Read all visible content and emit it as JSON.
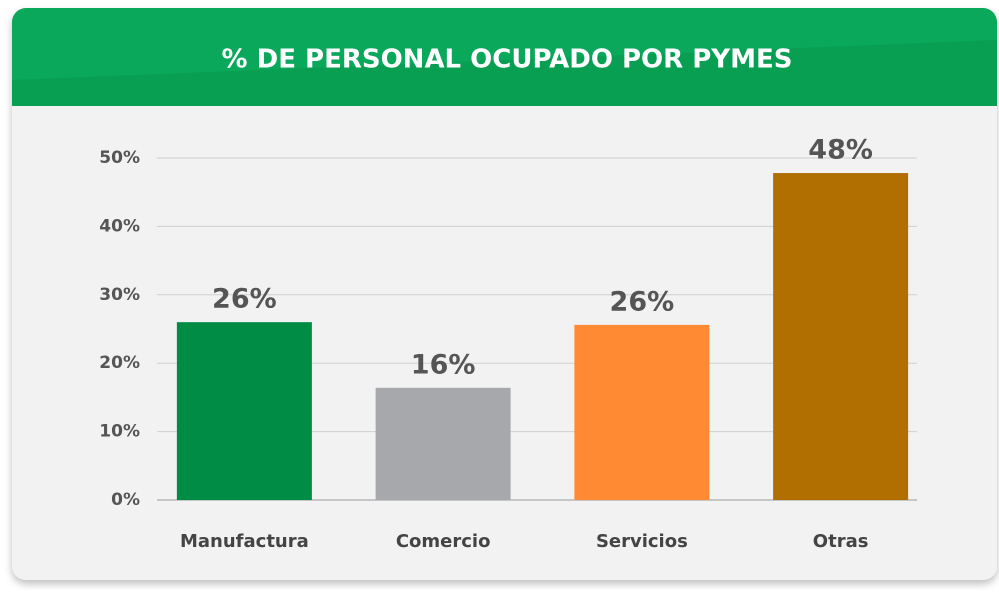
{
  "chart_data": {
    "type": "bar",
    "title": "% DE PERSONAL OCUPADO POR PYMES",
    "categories": [
      "Manufactura",
      "Comercio",
      "Servicios",
      "Otras"
    ],
    "values": [
      26,
      16.4,
      25.6,
      47.8
    ],
    "value_labels": [
      "26%",
      "16%",
      "26%",
      "48%"
    ],
    "colors": [
      "#008c45",
      "#a7a8ab",
      "#ff8a33",
      "#b06f00"
    ],
    "ylim": [
      0,
      50
    ],
    "yticks": [
      {
        "value": 0,
        "label": "0%"
      },
      {
        "value": 10,
        "label": "10%"
      },
      {
        "value": 20,
        "label": "20%"
      },
      {
        "value": 30,
        "label": "30%"
      },
      {
        "value": 40,
        "label": "40%"
      },
      {
        "value": 50,
        "label": "50%"
      }
    ],
    "grid": true
  }
}
